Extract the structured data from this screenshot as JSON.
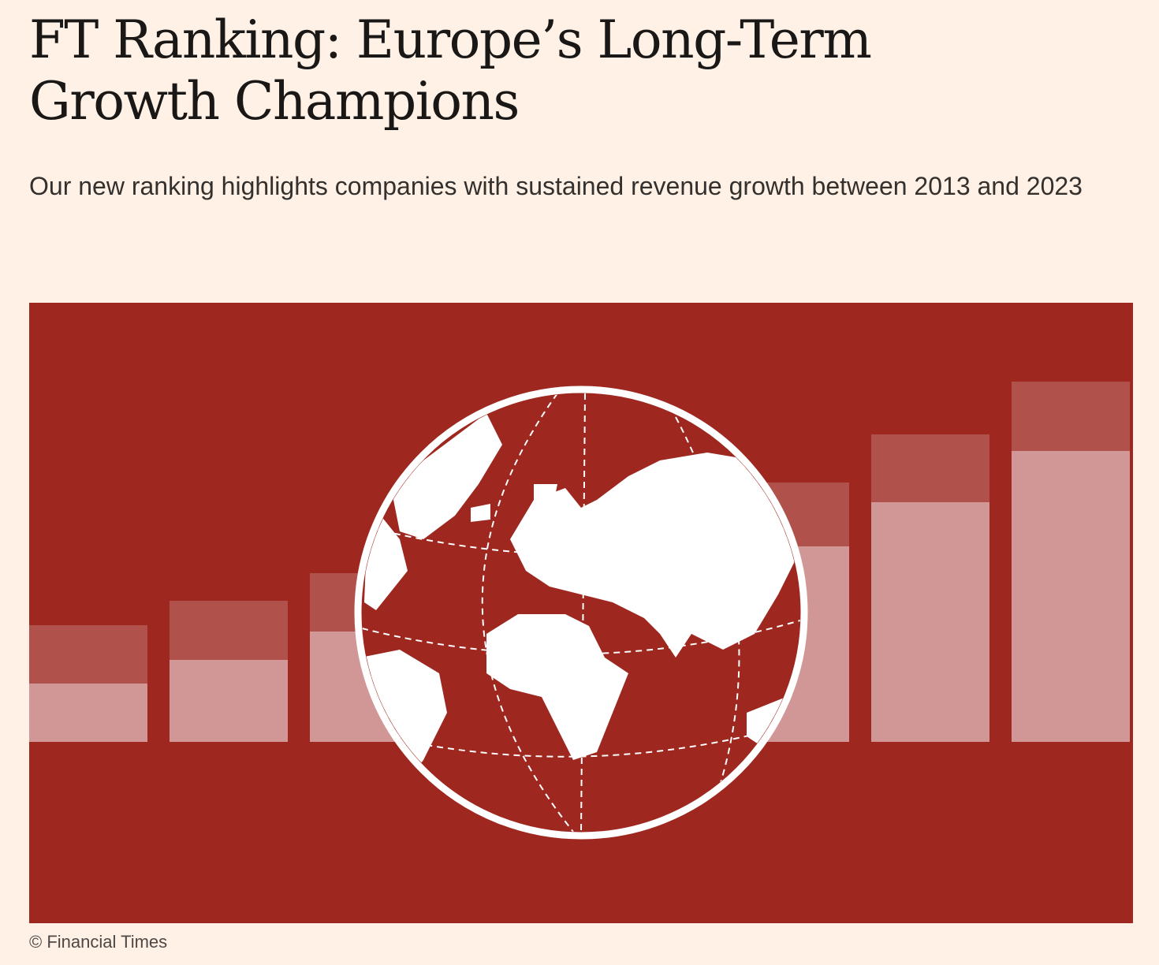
{
  "article": {
    "title": "FT Ranking: Europe’s Long-Term Growth Champions",
    "standfirst": "Our new ranking highlights companies with sustained revenue growth between 2013 and 2023",
    "image_caption": "© Financial Times"
  },
  "illustration": {
    "description_icon": "globe-with-growth-bars",
    "colors": {
      "background": "#FFF1E5",
      "figure_red": "#9E2820",
      "bar_dark": "#B0524B",
      "bar_light": "#D09796",
      "globe_white": "#FFFFFF"
    }
  }
}
